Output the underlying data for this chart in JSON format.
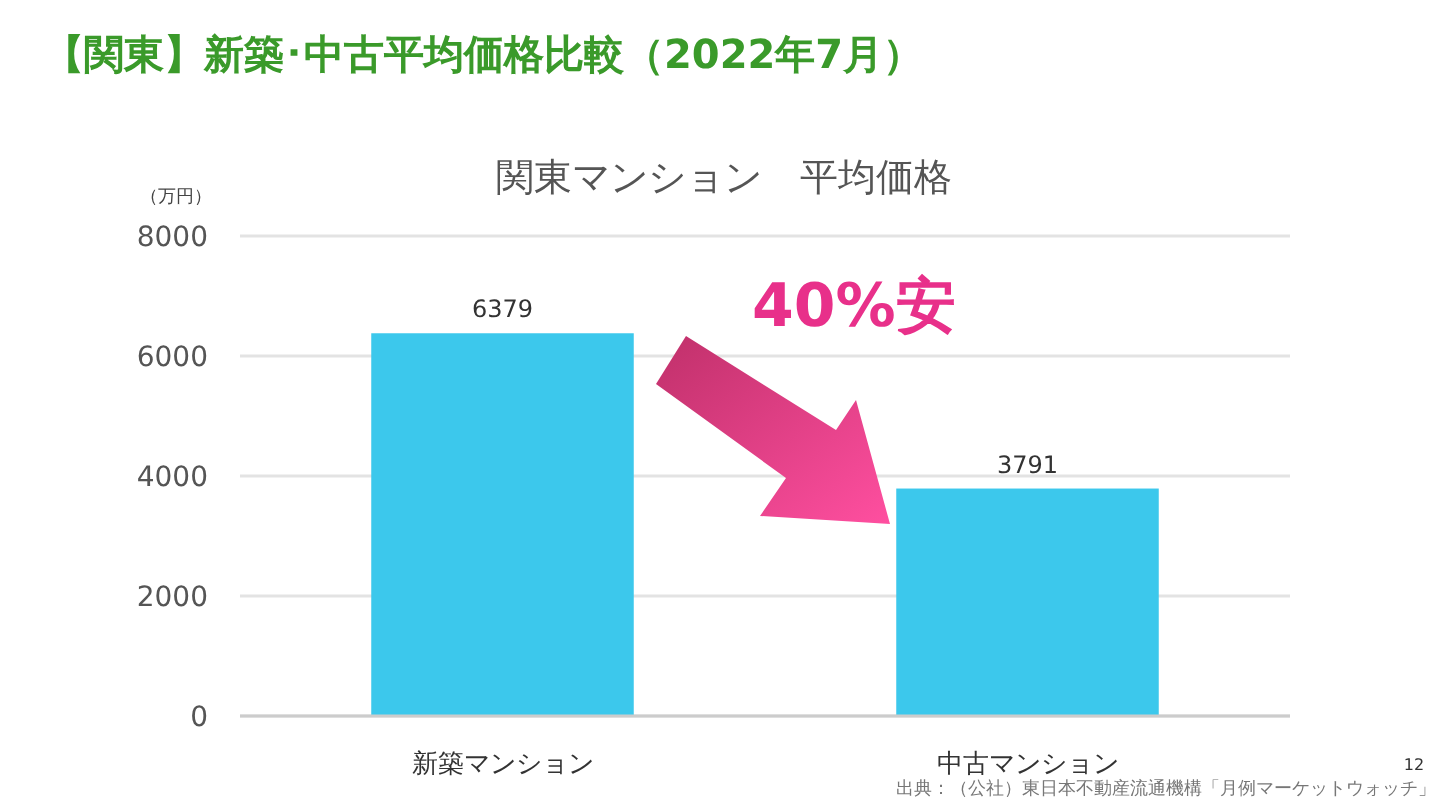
{
  "chart_data": {
    "type": "bar",
    "title": "【関東】新築･中古平均価格比較（2022年7月）",
    "subtitle": "関東マンション　平均価格",
    "ylabel": "（万円）",
    "categories": [
      "新築マンション",
      "中古マンション"
    ],
    "values": [
      6379,
      3791
    ],
    "color": "#3cc8ec",
    "ylim": [
      0,
      8000
    ],
    "yticks": [
      0,
      2000,
      4000,
      6000,
      8000
    ],
    "grid": "y",
    "data_labels": true,
    "annotations": [
      "40%安",
      "12",
      "出典：（公社）東日本不動産流通機構「月例マーケットウォッチ」"
    ]
  }
}
